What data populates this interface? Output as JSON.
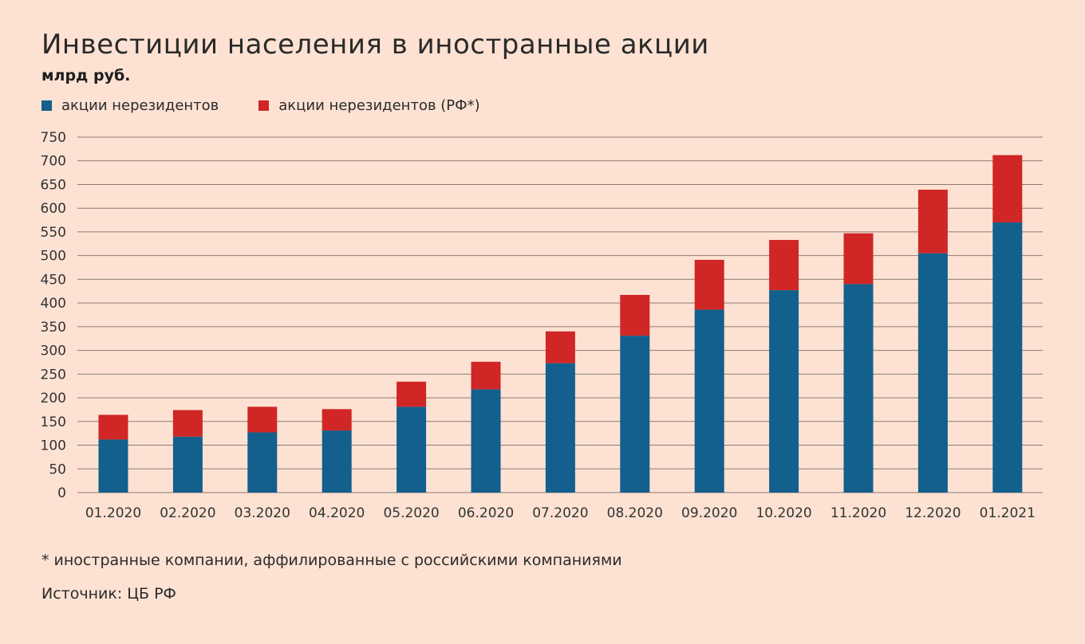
{
  "header": {
    "title": "Инвестиции населения в иностранные акции",
    "subtitle": "млрд руб."
  },
  "legend": [
    {
      "label": "акции нерезидентов",
      "color": "#135f8d"
    },
    {
      "label": "акции нерезидентов (РФ*)",
      "color": "#d02626"
    }
  ],
  "footer": {
    "footnote": "* иностранные компании, аффилированные с российскими компаниями",
    "source": "Источник: ЦБ РФ"
  },
  "colors": {
    "background": "#fde2d3",
    "gridline": "#8a7b74",
    "series_1": "#135f8d",
    "series_2": "#d02626"
  },
  "chart_data": {
    "type": "bar",
    "stacked": true,
    "title": "Инвестиции населения в иностранные акции",
    "subtitle": "млрд руб.",
    "categories": [
      "01.2020",
      "02.2020",
      "03.2020",
      "04.2020",
      "05.2020",
      "06.2020",
      "07.2020",
      "08.2020",
      "09.2020",
      "10.2020",
      "11.2020",
      "12.2020",
      "01.2021"
    ],
    "series": [
      {
        "name": "акции нерезидентов",
        "color": "#135f8d",
        "values": [
          112,
          118,
          127,
          131,
          181,
          218,
          273,
          331,
          386,
          427,
          440,
          505,
          570
        ]
      },
      {
        "name": "акции нерезидентов (РФ*)",
        "color": "#d02626",
        "values": [
          52,
          56,
          54,
          45,
          53,
          58,
          67,
          86,
          105,
          106,
          107,
          134,
          142
        ]
      }
    ],
    "ylim": [
      0,
      750
    ],
    "yticks": [
      0,
      50,
      100,
      150,
      200,
      250,
      300,
      350,
      400,
      450,
      500,
      550,
      600,
      650,
      700,
      750
    ],
    "grid": true,
    "legend_position": "top-left"
  }
}
